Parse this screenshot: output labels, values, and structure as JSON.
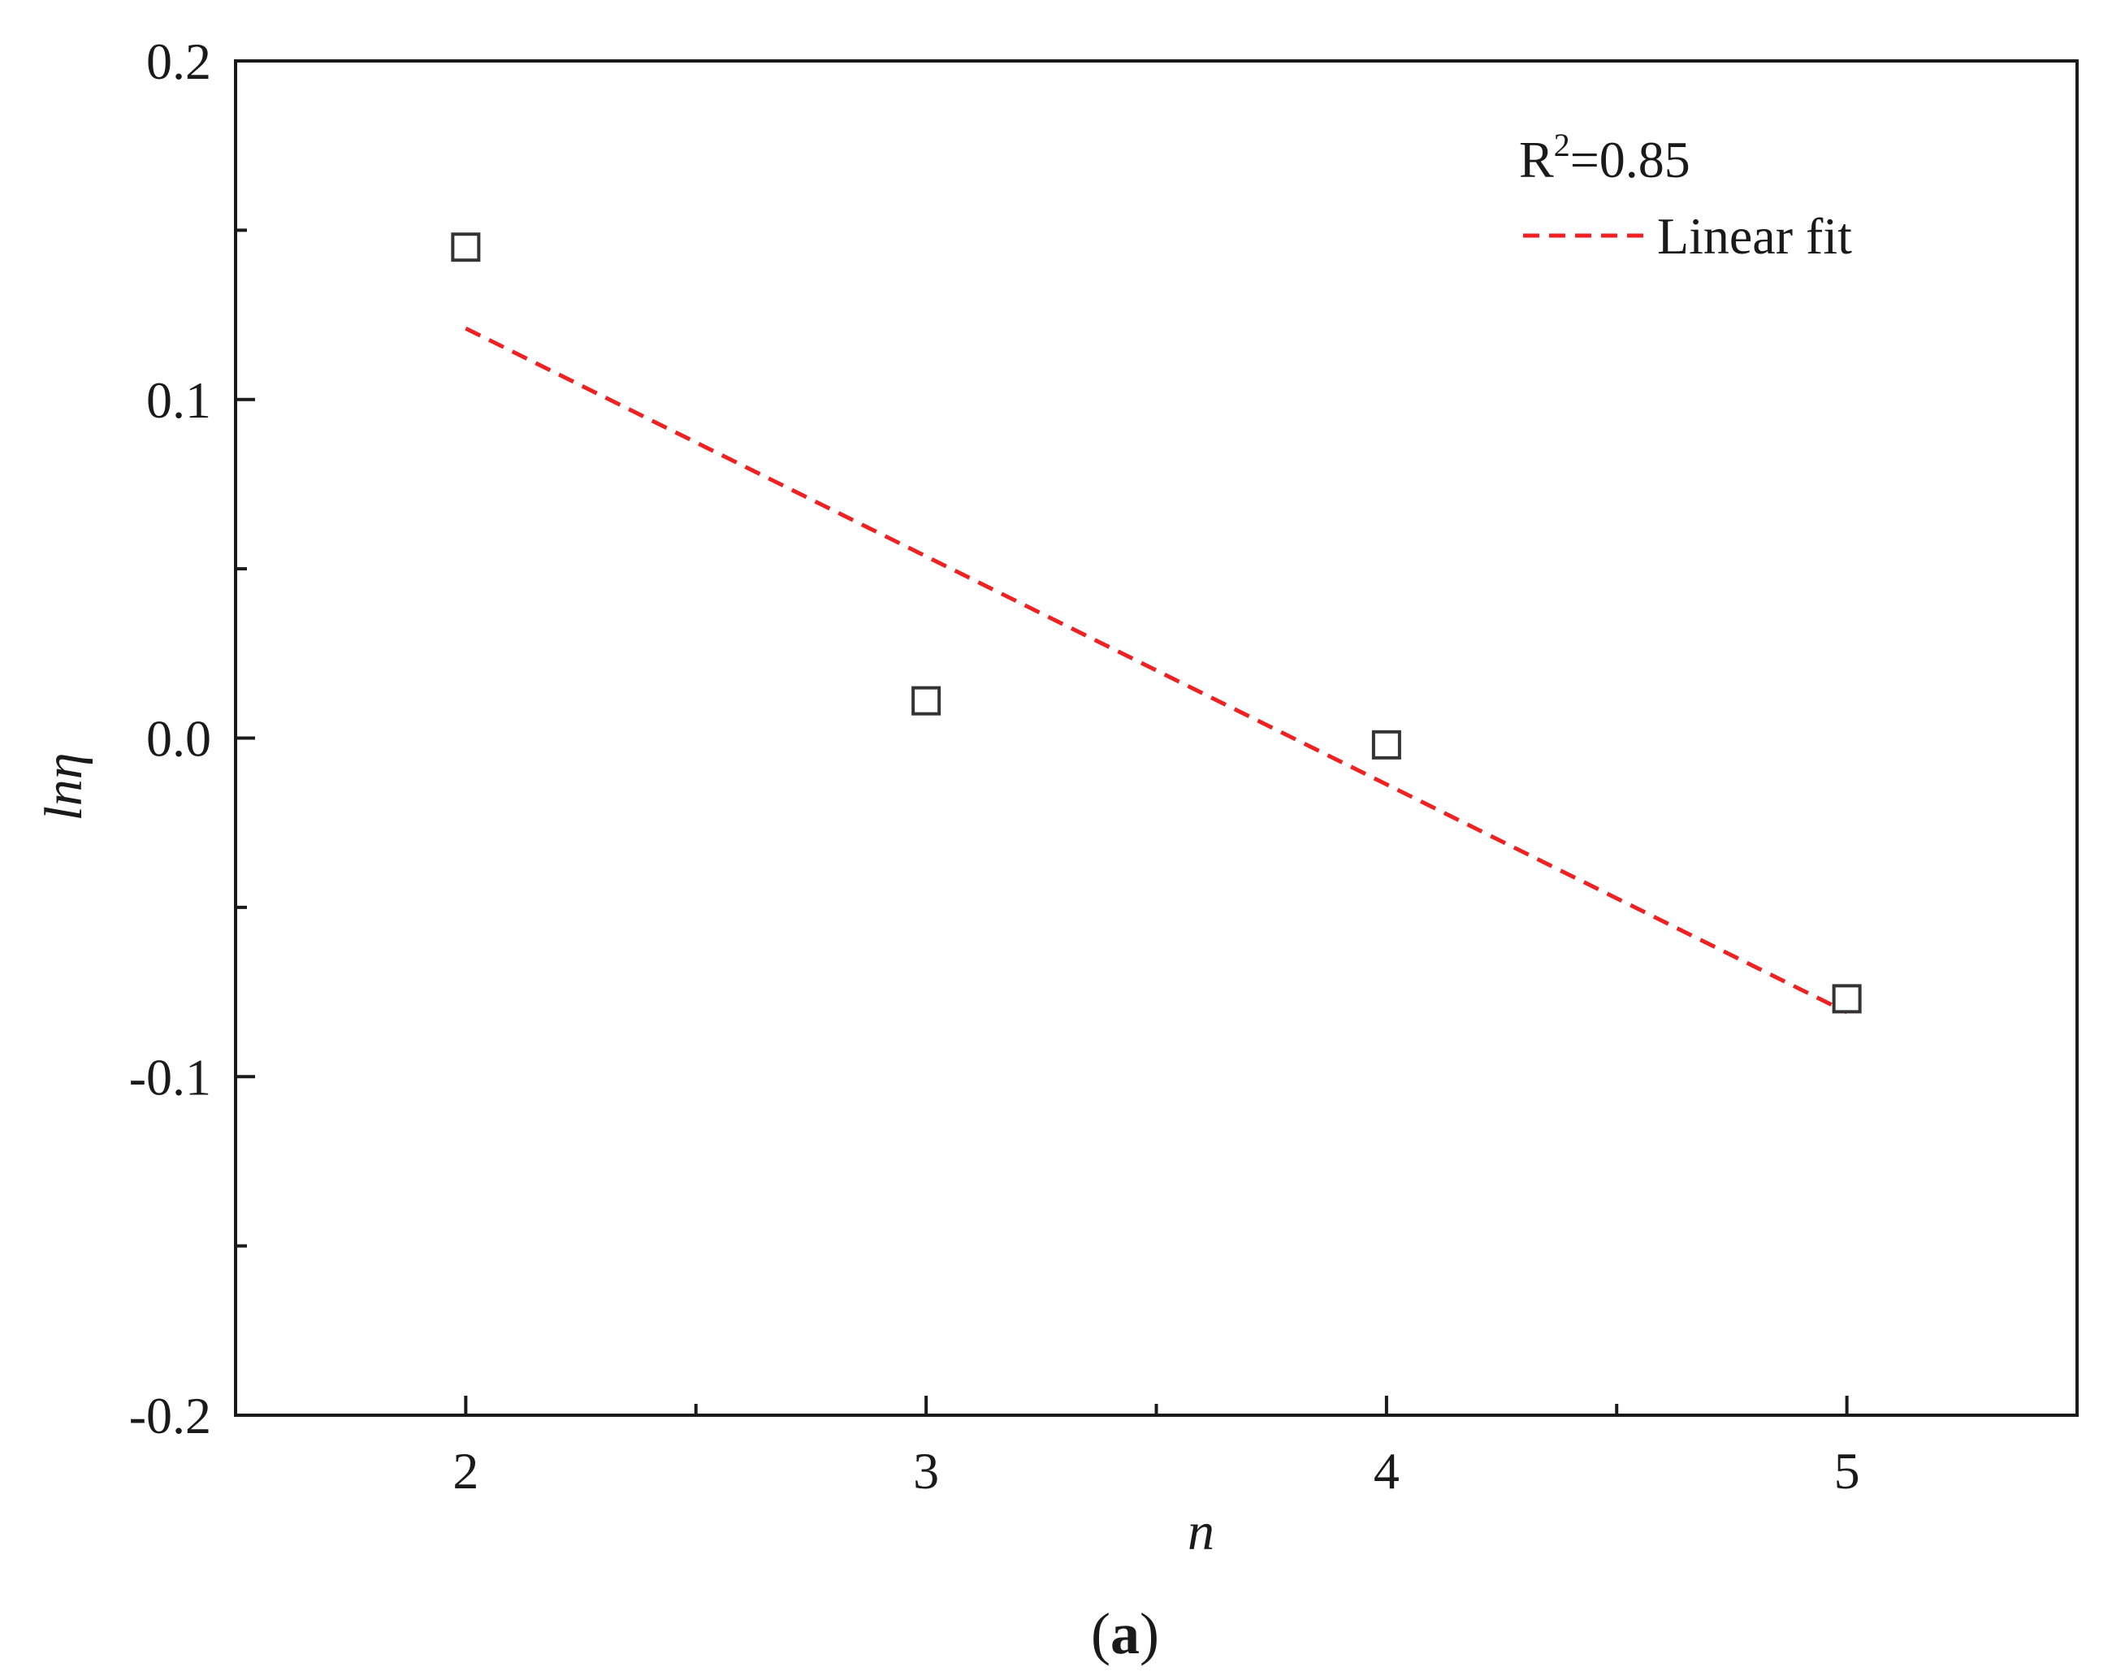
{
  "chart_data": {
    "type": "scatter",
    "xlabel": "n",
    "ylabel": "lnη",
    "xlim": [
      1.5,
      5.5
    ],
    "ylim": [
      -0.2,
      0.2
    ],
    "x_ticks": [
      2,
      3,
      4,
      5
    ],
    "x_tick_labels": [
      "2",
      "3",
      "4",
      "5"
    ],
    "x_minor_ticks": [
      2.5,
      3.5,
      4.5
    ],
    "y_ticks": [
      -0.2,
      -0.1,
      0.0,
      0.1,
      0.2
    ],
    "y_tick_labels": [
      "-0.2",
      "-0.1",
      "0.0",
      "0.1",
      "0.2"
    ],
    "y_minor_ticks": [
      -0.15,
      -0.05,
      0.05,
      0.15
    ],
    "grid": false,
    "series": [
      {
        "marker": "open-square",
        "color": "#333333",
        "x": [
          2,
          3,
          4,
          5
        ],
        "y": [
          0.145,
          0.011,
          -0.002,
          -0.077
        ]
      }
    ],
    "fit_line": {
      "color": "#ee2222",
      "style": "dashed",
      "x": [
        2,
        5
      ],
      "y": [
        0.121,
        -0.081
      ]
    },
    "legend": {
      "placement": "top-right",
      "r2_base": "R",
      "r2_sup": "2",
      "r2_value": "=0.85",
      "fit_label": "Linear fit"
    },
    "caption": {
      "open": "(",
      "letter": "a",
      "close": ")"
    }
  }
}
